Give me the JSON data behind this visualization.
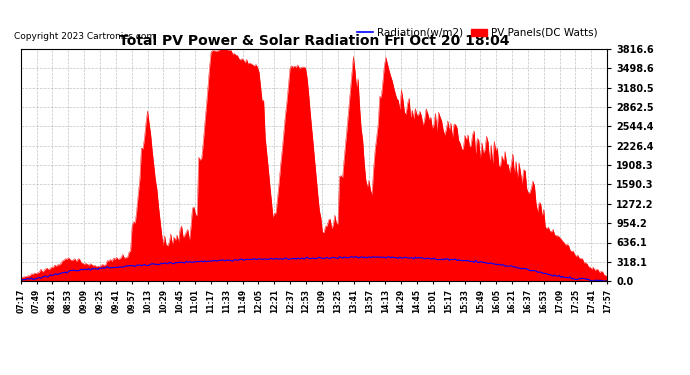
{
  "title": "Total PV Power & Solar Radiation Fri Oct 20 18:04",
  "copyright": "Copyright 2023 Cartronics.com",
  "legend_radiation": "Radiation(w/m2)",
  "legend_pv": "PV Panels(DC Watts)",
  "legend_radiation_color": "blue",
  "legend_pv_color": "red",
  "y_ticks": [
    0.0,
    318.1,
    636.1,
    954.2,
    1272.2,
    1590.3,
    1908.3,
    2226.4,
    2544.4,
    2862.5,
    3180.5,
    3498.6,
    3816.6
  ],
  "ylim": [
    0,
    3816.6
  ],
  "background_color": "#ffffff",
  "plot_background": "#ffffff",
  "grid_color": "#aaaaaa",
  "x_tick_labels": [
    "07:17",
    "07:49",
    "08:21",
    "08:53",
    "09:09",
    "09:25",
    "09:41",
    "09:57",
    "10:13",
    "10:29",
    "10:45",
    "11:01",
    "11:17",
    "11:33",
    "11:49",
    "12:05",
    "12:21",
    "12:37",
    "12:53",
    "13:09",
    "13:25",
    "13:41",
    "13:57",
    "14:13",
    "14:29",
    "14:45",
    "15:01",
    "15:17",
    "15:33",
    "15:49",
    "16:05",
    "16:21",
    "16:37",
    "16:53",
    "17:09",
    "17:25",
    "17:41",
    "17:57"
  ]
}
